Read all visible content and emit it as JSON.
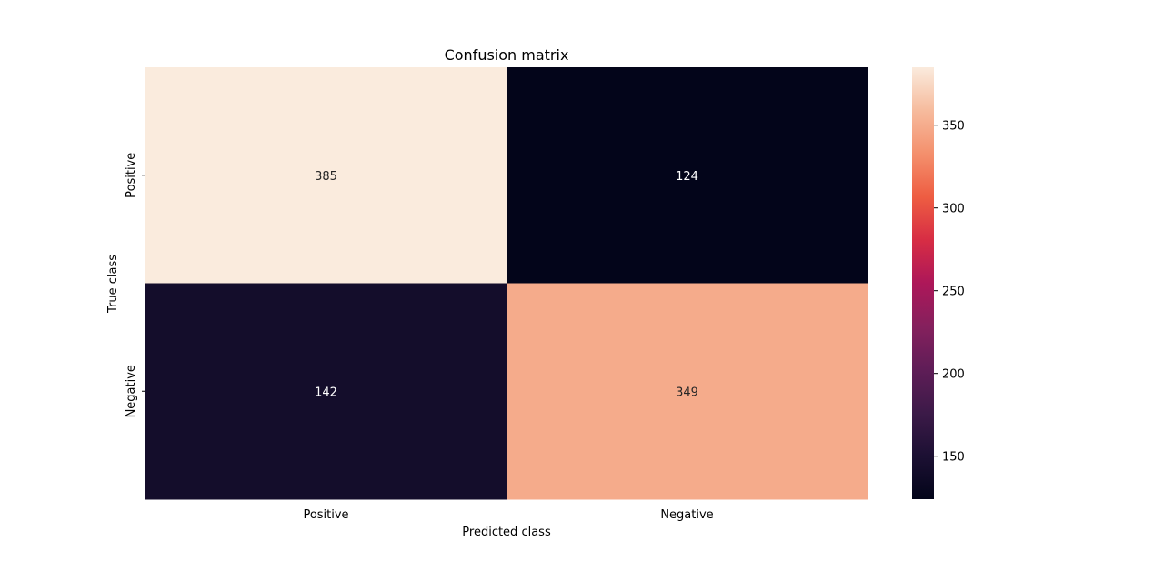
{
  "chart_data": {
    "type": "heatmap",
    "title": "Confusion matrix",
    "xlabel": "Predicted class",
    "ylabel": "True class",
    "x_categories": [
      "Positive",
      "Negative"
    ],
    "y_categories": [
      "Positive",
      "Negative"
    ],
    "values": [
      [
        385,
        124
      ],
      [
        142,
        349
      ]
    ],
    "colormap": "rocket",
    "value_range": [
      124,
      385
    ],
    "colorbar_ticks": [
      150,
      200,
      250,
      300,
      350
    ],
    "grid": false,
    "legend": "colorbar-right"
  }
}
